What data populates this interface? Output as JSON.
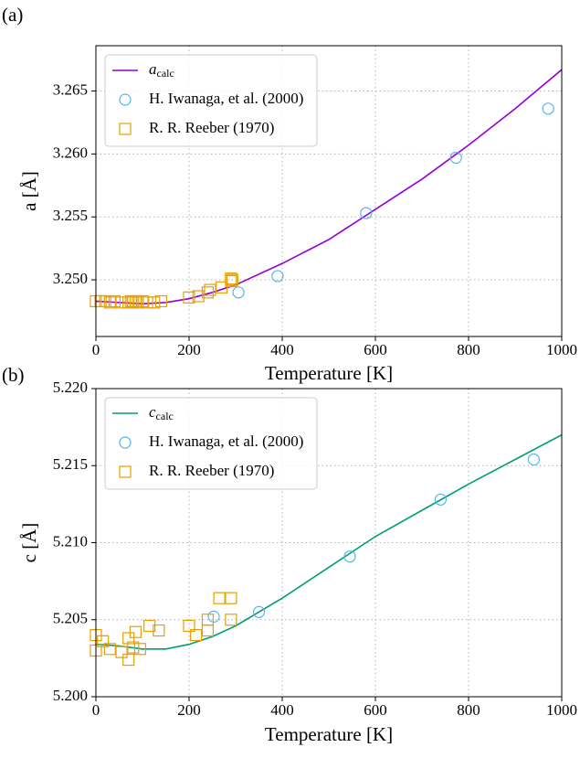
{
  "chart_data": [
    {
      "type": "line",
      "panel_label": "(a)",
      "xlabel": "Temperature [K]",
      "ylabel": "a [Å]",
      "xlim": [
        0,
        1000
      ],
      "xticks": [
        0,
        200,
        400,
        600,
        800,
        1000
      ],
      "ylim": [
        3.2455,
        3.2686
      ],
      "yticks": [
        {
          "value": 3.25,
          "label": "3.250"
        },
        3.255,
        {
          "value": 3.26,
          "label": "3.260"
        },
        3.265
      ],
      "grid": true,
      "legend": "upper left",
      "series": [
        {
          "name": "a_calc",
          "color": "#9400d3",
          "marker": "line",
          "x": [
            0,
            50,
            100,
            150,
            200,
            250,
            300,
            400,
            500,
            600,
            700,
            800,
            900,
            1000
          ],
          "values": [
            3.2483,
            3.2482,
            3.2481,
            3.2482,
            3.2485,
            3.249,
            3.2496,
            3.2513,
            3.2532,
            3.2556,
            3.258,
            3.2607,
            3.2636,
            3.2667
          ]
        },
        {
          "name": "H. Iwanaga, et al. (2000)",
          "color": "#56b4e9",
          "marker": "circle",
          "x": [
            306,
            390,
            580,
            773,
            971
          ],
          "values": [
            3.249,
            3.2503,
            3.2553,
            3.2597,
            3.2636
          ]
        },
        {
          "name": "R. R. Reeber (1970)",
          "color": "#e69f00",
          "marker": "square",
          "x": [
            0,
            10,
            20,
            30,
            40,
            55,
            70,
            75,
            80,
            85,
            90,
            100,
            110,
            125,
            140,
            200,
            220,
            240,
            245,
            270,
            290,
            290,
            293
          ],
          "values": [
            3.2483,
            3.2483,
            3.2483,
            3.2482,
            3.2483,
            3.2482,
            3.2482,
            3.2483,
            3.2482,
            3.2483,
            3.2482,
            3.2483,
            3.2482,
            3.2482,
            3.2483,
            3.2486,
            3.2487,
            3.249,
            3.2492,
            3.2494,
            3.2499,
            3.2501,
            3.25
          ]
        }
      ]
    },
    {
      "type": "line",
      "panel_label": "(b)",
      "xlabel": "Temperature [K]",
      "ylabel": "c [Å]",
      "xlim": [
        0,
        1000
      ],
      "xticks": [
        0,
        200,
        400,
        600,
        800,
        1000
      ],
      "ylim": [
        5.2,
        5.22
      ],
      "yticks": [
        {
          "value": 5.2,
          "label": "5.200"
        },
        5.205,
        {
          "value": 5.21,
          "label": "5.210"
        },
        5.215,
        {
          "value": 5.22,
          "label": "5.220"
        }
      ],
      "grid": true,
      "legend": "upper left",
      "series": [
        {
          "name": "c_calc",
          "color": "#009e73",
          "marker": "line",
          "x": [
            0,
            50,
            100,
            150,
            200,
            250,
            300,
            400,
            500,
            600,
            700,
            800,
            900,
            1000
          ],
          "values": [
            5.2034,
            5.2033,
            5.2031,
            5.2031,
            5.2034,
            5.2039,
            5.2046,
            5.2064,
            5.2084,
            5.2104,
            5.2121,
            5.2138,
            5.2154,
            5.217
          ]
        },
        {
          "name": "H. Iwanaga, et al. (2000)",
          "color": "#56b4e9",
          "marker": "circle",
          "x": [
            253,
            350,
            545,
            740,
            940
          ],
          "values": [
            5.2052,
            5.2055,
            5.2091,
            5.2128,
            5.2154
          ]
        },
        {
          "name": "R. R. Reeber (1970)",
          "color": "#e69f00",
          "marker": "square",
          "x": [
            0,
            0,
            15,
            30,
            55,
            70,
            70,
            80,
            85,
            95,
            115,
            135,
            200,
            215,
            240,
            240,
            265,
            290,
            290
          ],
          "values": [
            5.204,
            5.203,
            5.2036,
            5.2031,
            5.2029,
            5.2038,
            5.2024,
            5.2032,
            5.2042,
            5.2031,
            5.2046,
            5.2043,
            5.2046,
            5.204,
            5.2043,
            5.205,
            5.2064,
            5.2064,
            5.205
          ]
        }
      ]
    }
  ]
}
